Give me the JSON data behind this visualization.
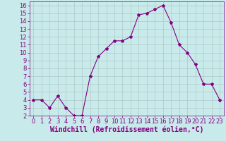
{
  "x": [
    0,
    1,
    2,
    3,
    4,
    5,
    6,
    7,
    8,
    9,
    10,
    11,
    12,
    13,
    14,
    15,
    16,
    17,
    18,
    19,
    20,
    21,
    22,
    23
  ],
  "y": [
    4,
    4,
    3,
    4.5,
    3,
    2,
    2,
    7,
    9.5,
    10.5,
    11.5,
    11.5,
    12,
    14.8,
    15,
    15.5,
    16,
    13.8,
    11,
    10,
    8.5,
    6,
    6,
    4
  ],
  "line_color": "#800080",
  "marker": "*",
  "marker_size": 3,
  "bg_color": "#c8eaea",
  "grid_color": "#b0c8c8",
  "xlabel": "Windchill (Refroidissement éolien,°C)",
  "xlabel_color": "#800080",
  "xlabel_fontsize": 7,
  "ylim": [
    2,
    16.5
  ],
  "yticks": [
    2,
    3,
    4,
    5,
    6,
    7,
    8,
    9,
    10,
    11,
    12,
    13,
    14,
    15,
    16
  ],
  "xticks": [
    0,
    1,
    2,
    3,
    4,
    5,
    6,
    7,
    8,
    9,
    10,
    11,
    12,
    13,
    14,
    15,
    16,
    17,
    18,
    19,
    20,
    21,
    22,
    23
  ],
  "tick_fontsize": 6,
  "tick_color": "#800080",
  "spine_color": "#800080",
  "xlim": [
    -0.5,
    23.5
  ]
}
